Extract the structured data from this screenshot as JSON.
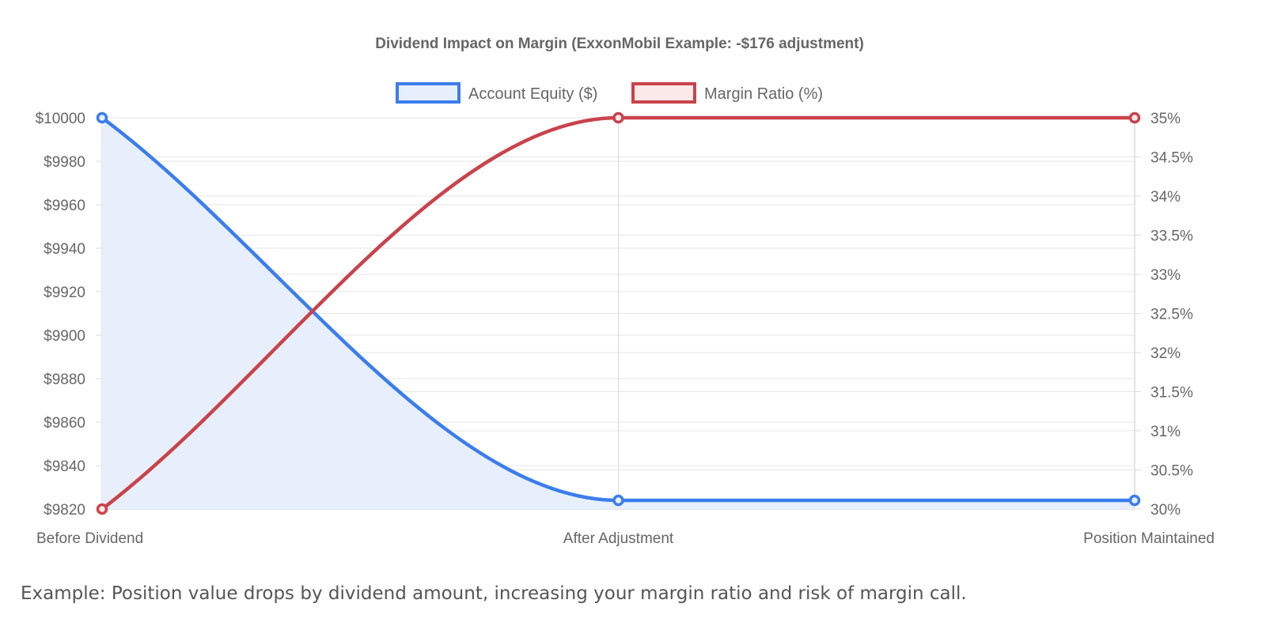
{
  "chart_data": {
    "type": "line",
    "title": "Dividend Impact on Margin (ExxonMobil Example: -$176 adjustment)",
    "categories": [
      "Before Dividend",
      "After Adjustment",
      "Position Maintained"
    ],
    "series": [
      {
        "name": "Account Equity ($)",
        "axis": "left",
        "values": [
          10000,
          9824,
          9824
        ],
        "color": "#3b7ded",
        "fill": "#e8effc",
        "filled": true
      },
      {
        "name": "Margin Ratio (%)",
        "axis": "right",
        "values": [
          30,
          35,
          35
        ],
        "color": "#c9434b",
        "fill": "#fbe9ea",
        "filled": false
      }
    ],
    "y_left": {
      "min": 9820,
      "max": 10000,
      "ticks": [
        10000,
        9980,
        9960,
        9940,
        9920,
        9900,
        9880,
        9860,
        9840,
        9820
      ],
      "tick_labels": [
        "$10000",
        "$9980",
        "$9960",
        "$9940",
        "$9920",
        "$9900",
        "$9880",
        "$9860",
        "$9840",
        "$9820"
      ]
    },
    "y_right": {
      "min": 30,
      "max": 35,
      "ticks": [
        35,
        34.5,
        34,
        33.5,
        33,
        32.5,
        32,
        31.5,
        31,
        30.5,
        30
      ],
      "tick_labels": [
        "35%",
        "34.5%",
        "34%",
        "33.5%",
        "33%",
        "32.5%",
        "32%",
        "31.5%",
        "31%",
        "30.5%",
        "30%"
      ]
    },
    "grid": true,
    "legend_position": "top"
  },
  "caption": "Example: Position value drops by dividend amount, increasing your margin ratio and risk of margin call."
}
